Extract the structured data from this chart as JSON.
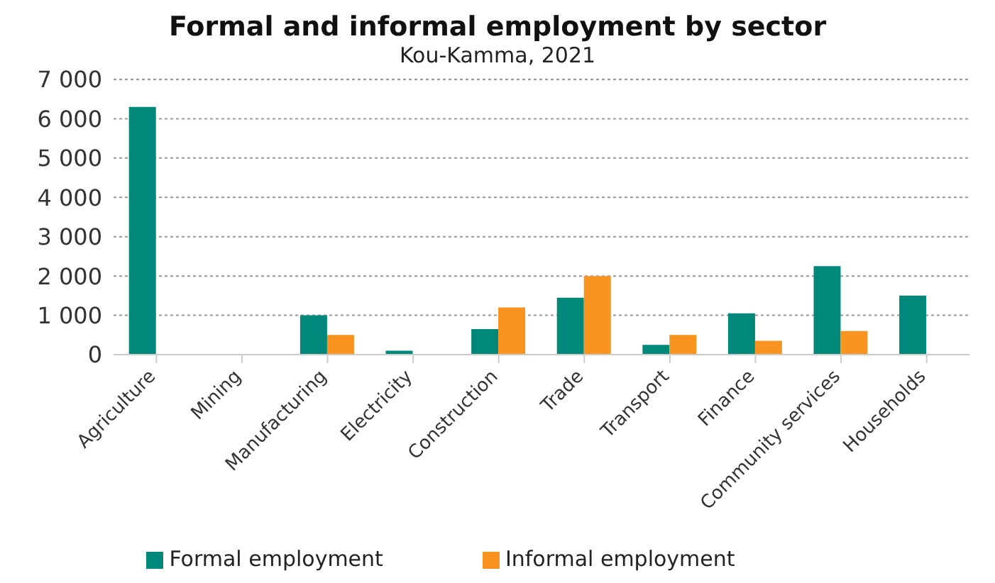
{
  "chart_data": {
    "type": "bar",
    "title": "Formal and informal employment by sector",
    "subtitle": "Kou-Kamma, 2021",
    "categories": [
      "Agriculture",
      "Mining",
      "Manufacturing",
      "Electricity",
      "Construction",
      "Trade",
      "Transport",
      "Finance",
      "Community services",
      "Households"
    ],
    "series": [
      {
        "name": "Formal employment",
        "color": "#00897b",
        "values": [
          6300,
          null,
          1000,
          100,
          650,
          1450,
          250,
          1050,
          2250,
          1500
        ]
      },
      {
        "name": "Informal employment",
        "color": "#f7931e",
        "values": [
          null,
          null,
          500,
          null,
          1200,
          2000,
          500,
          350,
          600,
          null
        ]
      }
    ],
    "ylim": [
      0,
      7000
    ],
    "yticks": [
      {
        "value": 0,
        "label": "0"
      },
      {
        "value": 1000,
        "label": "1 000"
      },
      {
        "value": 2000,
        "label": "2 000"
      },
      {
        "value": 3000,
        "label": "3 000"
      },
      {
        "value": 4000,
        "label": "4 000"
      },
      {
        "value": 5000,
        "label": "5 000"
      },
      {
        "value": 6000,
        "label": "6 000"
      },
      {
        "value": 7000,
        "label": "7 000"
      }
    ],
    "grid": "y",
    "legend": "bottom"
  }
}
